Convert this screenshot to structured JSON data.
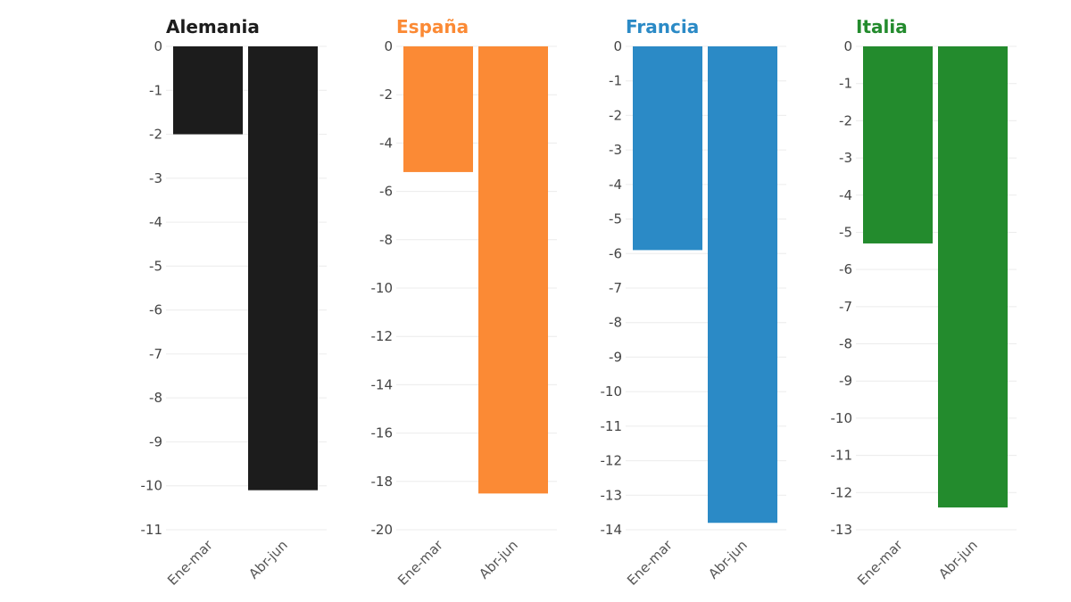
{
  "chart_data": [
    {
      "type": "bar",
      "title": "Alemania",
      "color": "#1c1c1c",
      "categories": [
        "Ene-mar",
        "Abr-jun"
      ],
      "values": [
        -2.0,
        -10.1
      ],
      "ylim": [
        -11,
        0
      ],
      "yticks": [
        "0",
        "-1",
        "-2",
        "-3",
        "-4",
        "-5",
        "-6",
        "-7",
        "-8",
        "-9",
        "-10",
        "-11"
      ],
      "ytick_values": [
        0,
        -1,
        -2,
        -3,
        -4,
        -5,
        -6,
        -7,
        -8,
        -9,
        -10,
        -11
      ],
      "grid": true
    },
    {
      "type": "bar",
      "title": "España",
      "color": "#fb8a35",
      "categories": [
        "Ene-mar",
        "Abr-jun"
      ],
      "values": [
        -5.2,
        -18.5
      ],
      "ylim": [
        -20,
        0
      ],
      "yticks": [
        "0",
        "-2",
        "-4",
        "-6",
        "-8",
        "-10",
        "-12",
        "-14",
        "-16",
        "-18",
        "-20"
      ],
      "ytick_values": [
        0,
        -2,
        -4,
        -6,
        -8,
        -10,
        -12,
        -14,
        -16,
        -18,
        -20
      ],
      "grid": true
    },
    {
      "type": "bar",
      "title": "Francia",
      "color": "#2b8ac6",
      "categories": [
        "Ene-mar",
        "Abr-jun"
      ],
      "values": [
        -5.9,
        -13.8
      ],
      "ylim": [
        -14,
        0
      ],
      "yticks": [
        "0",
        "-1",
        "-2",
        "-3",
        "-4",
        "-5",
        "-6",
        "-7",
        "-8",
        "-9",
        "-10",
        "-11",
        "-12",
        "-13",
        "-14"
      ],
      "ytick_values": [
        0,
        -1,
        -2,
        -3,
        -4,
        -5,
        -6,
        -7,
        -8,
        -9,
        -10,
        -11,
        -12,
        -13,
        -14
      ],
      "grid": true
    },
    {
      "type": "bar",
      "title": "Italia",
      "color": "#238b2d",
      "categories": [
        "Ene-mar",
        "Abr-jun"
      ],
      "values": [
        -5.3,
        -12.4
      ],
      "ylim": [
        -13,
        0
      ],
      "yticks": [
        "0",
        "-1",
        "-2",
        "-3",
        "-4",
        "-5",
        "-6",
        "-7",
        "-8",
        "-9",
        "-10",
        "-11",
        "-12",
        "-13"
      ],
      "ytick_values": [
        0,
        -1,
        -2,
        -3,
        -4,
        -5,
        -6,
        -7,
        -8,
        -9,
        -10,
        -11,
        -12,
        -13
      ],
      "grid": true
    }
  ]
}
